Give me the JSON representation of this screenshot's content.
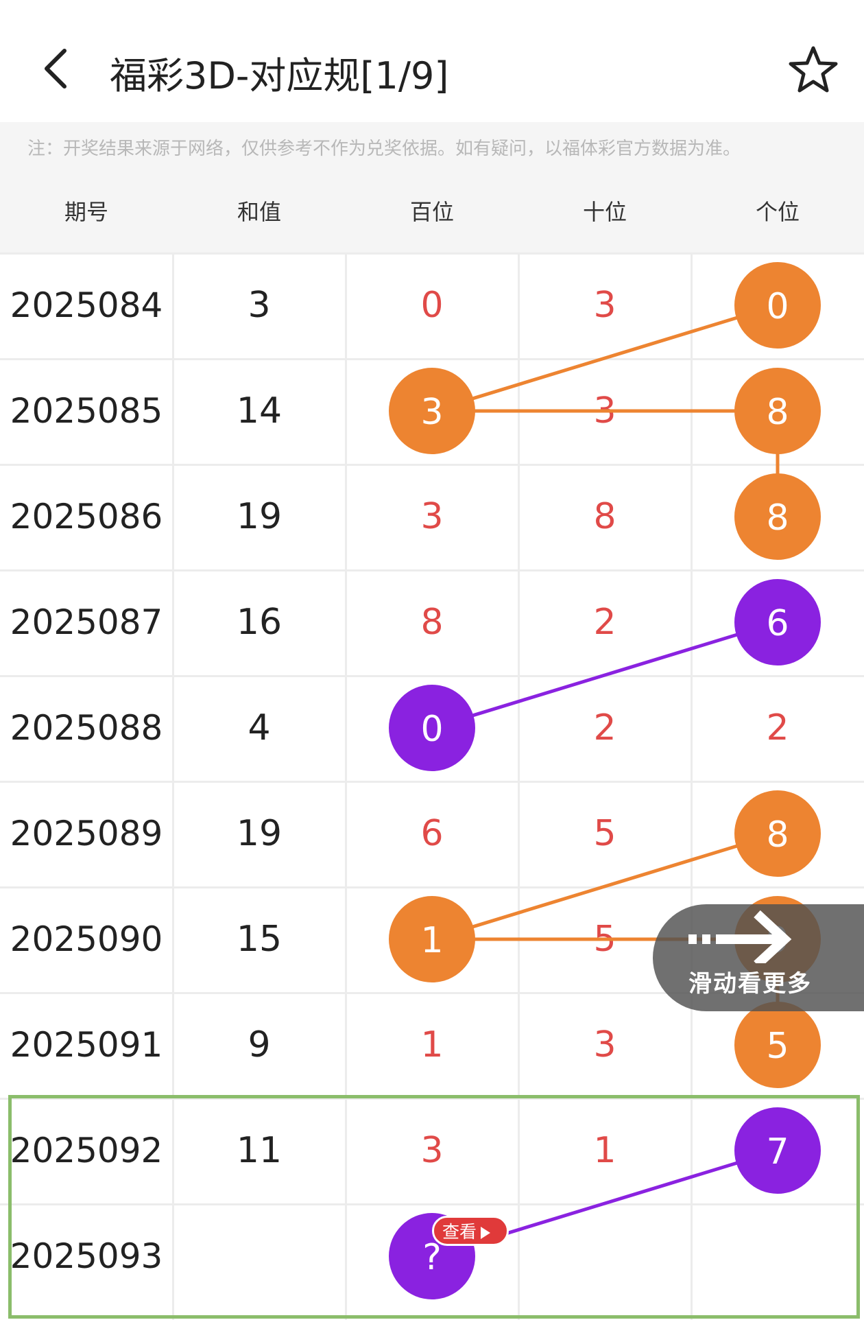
{
  "header": {
    "title": "福彩3D-对应规[1/9]",
    "back_icon": "chevron-left-icon",
    "favorite_icon": "star-outline-icon"
  },
  "notice": "注：开奖结果来源于网络，仅供参考不作为兑奖依据。如有疑问，以福体彩官方数据为准。",
  "table": {
    "columns": [
      "期号",
      "和值",
      "百位",
      "十位",
      "个位"
    ],
    "rows": [
      {
        "issue": "2025084",
        "sum": "3",
        "hundreds": "0",
        "tens": "3",
        "units": "0"
      },
      {
        "issue": "2025085",
        "sum": "14",
        "hundreds": "3",
        "tens": "3",
        "units": "8"
      },
      {
        "issue": "2025086",
        "sum": "19",
        "hundreds": "3",
        "tens": "8",
        "units": "8"
      },
      {
        "issue": "2025087",
        "sum": "16",
        "hundreds": "8",
        "tens": "2",
        "units": "6"
      },
      {
        "issue": "2025088",
        "sum": "4",
        "hundreds": "0",
        "tens": "2",
        "units": "2"
      },
      {
        "issue": "2025089",
        "sum": "19",
        "hundreds": "6",
        "tens": "5",
        "units": "8"
      },
      {
        "issue": "2025090",
        "sum": "15",
        "hundreds": "1",
        "tens": "5",
        "units": "9"
      },
      {
        "issue": "2025091",
        "sum": "9",
        "hundreds": "1",
        "tens": "3",
        "units": "5"
      },
      {
        "issue": "2025092",
        "sum": "11",
        "hundreds": "3",
        "tens": "1",
        "units": "7"
      },
      {
        "issue": "2025093",
        "sum": "",
        "hundreds": "?",
        "tens": "",
        "units": ""
      }
    ]
  },
  "highlights": [
    {
      "row": 0,
      "col": "units",
      "color": "orange"
    },
    {
      "row": 1,
      "col": "hundreds",
      "color": "orange"
    },
    {
      "row": 1,
      "col": "units",
      "color": "orange"
    },
    {
      "row": 2,
      "col": "units",
      "color": "orange"
    },
    {
      "row": 3,
      "col": "units",
      "color": "purple"
    },
    {
      "row": 4,
      "col": "hundreds",
      "color": "purple"
    },
    {
      "row": 5,
      "col": "units",
      "color": "orange"
    },
    {
      "row": 6,
      "col": "hundreds",
      "color": "orange"
    },
    {
      "row": 6,
      "col": "units",
      "color": "orange"
    },
    {
      "row": 7,
      "col": "units",
      "color": "orange"
    },
    {
      "row": 8,
      "col": "units",
      "color": "purple"
    },
    {
      "row": 9,
      "col": "hundreds",
      "color": "purple"
    }
  ],
  "connections": [
    {
      "from": [
        0,
        "units"
      ],
      "to": [
        1,
        "hundreds"
      ],
      "color": "orange"
    },
    {
      "from": [
        1,
        "hundreds"
      ],
      "to": [
        1,
        "units"
      ],
      "color": "orange"
    },
    {
      "from": [
        1,
        "units"
      ],
      "to": [
        2,
        "units"
      ],
      "color": "orange"
    },
    {
      "from": [
        3,
        "units"
      ],
      "to": [
        4,
        "hundreds"
      ],
      "color": "purple"
    },
    {
      "from": [
        5,
        "units"
      ],
      "to": [
        6,
        "hundreds"
      ],
      "color": "orange"
    },
    {
      "from": [
        6,
        "hundreds"
      ],
      "to": [
        6,
        "units"
      ],
      "color": "orange"
    },
    {
      "from": [
        6,
        "units"
      ],
      "to": [
        7,
        "units"
      ],
      "color": "orange"
    },
    {
      "from": [
        8,
        "units"
      ],
      "to": [
        9,
        "hundreds"
      ],
      "color": "purple"
    }
  ],
  "colors": {
    "orange": "#ed8431",
    "purple": "#8a22e0",
    "digit_red": "#e04a48",
    "highlight_border": "#8bbd6b"
  },
  "view_badge": "查看",
  "swipe_hint": "滑动看更多"
}
